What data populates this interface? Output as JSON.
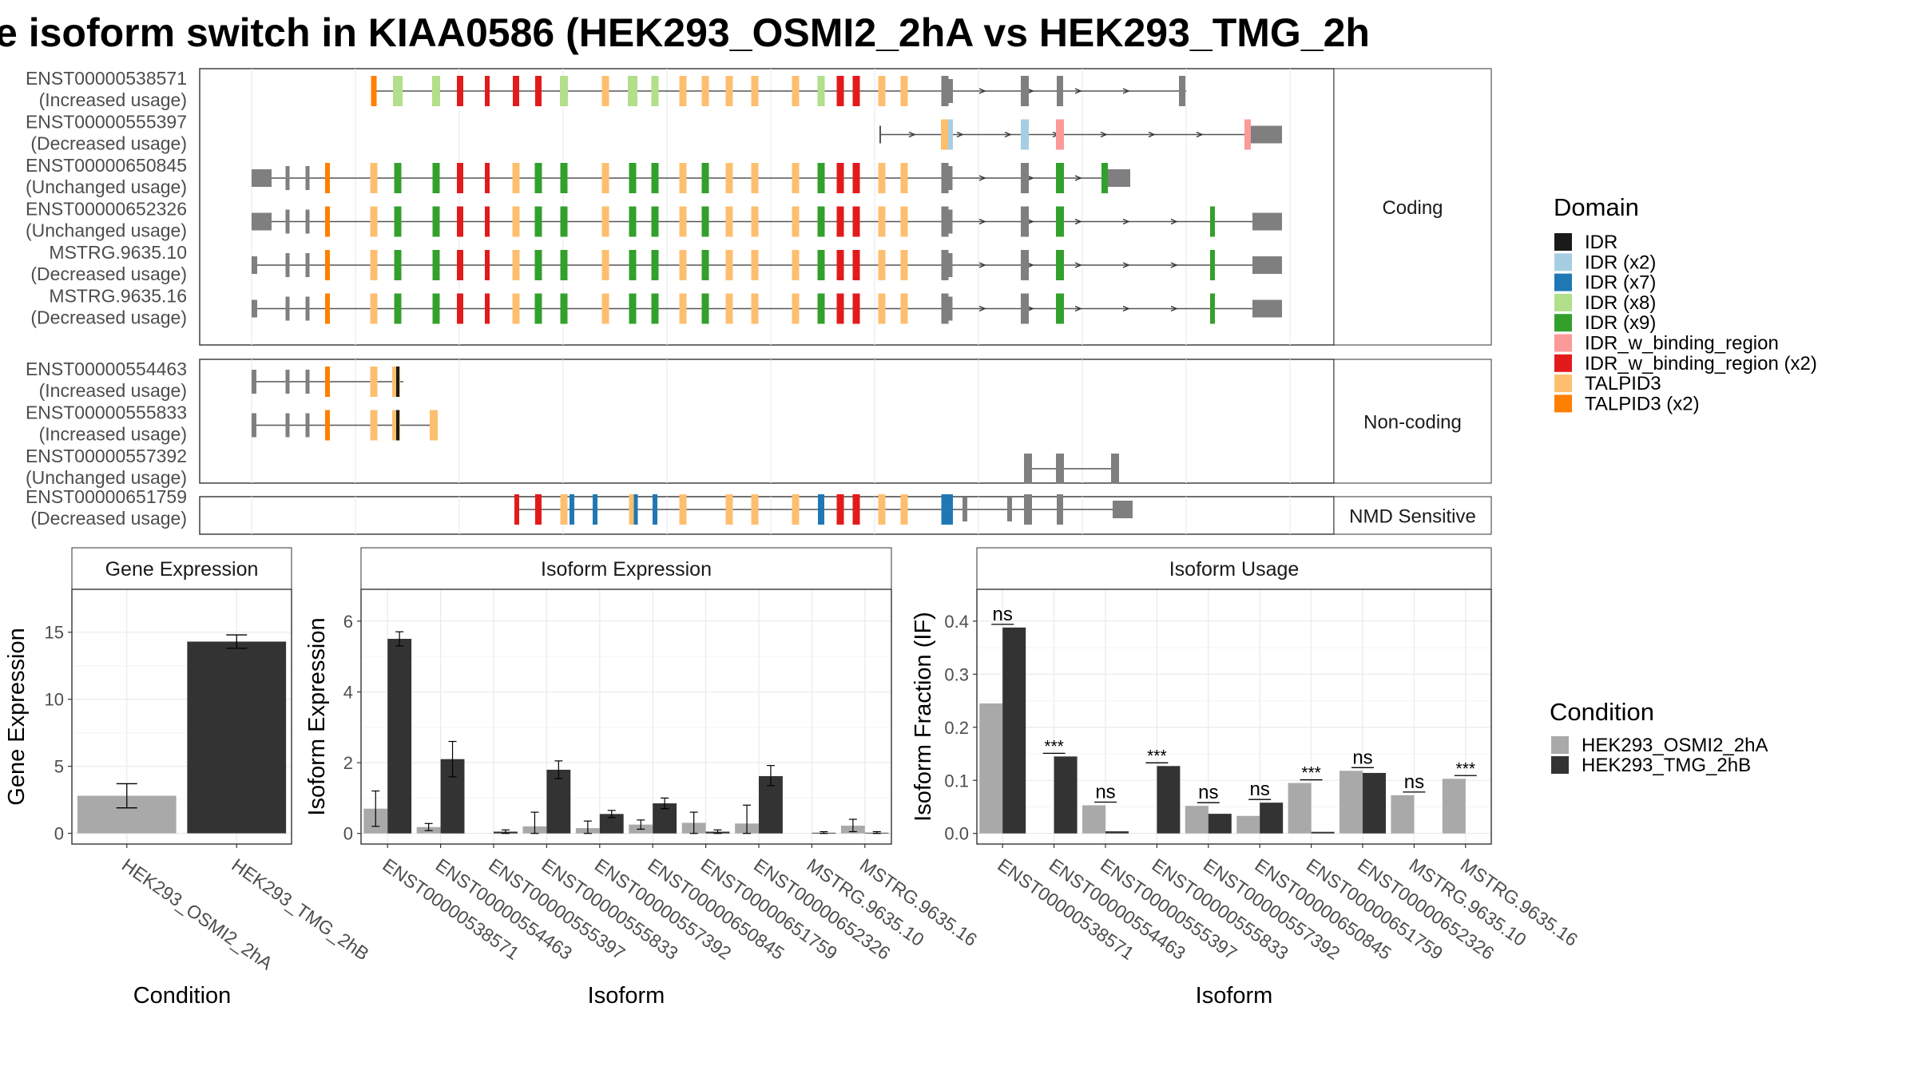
{
  "title": "e isoform switch in KIAA0586 (HEK293_OSMI2_2hA vs HEK293_TMG_2h",
  "colors": {
    "grey": "#7f7f7f",
    "cond_a": "#a9a9a9",
    "cond_b": "#333333",
    "IDR": "#1a1a1a",
    "IDR (x2)": "#a6cee3",
    "IDR (x7)": "#1f78b4",
    "IDR (x8)": "#b2df8a",
    "IDR (x9)": "#33a02c",
    "IDR_w_binding_region": "#fb9a99",
    "IDR_w_binding_region (x2)": "#e31a1c",
    "TALPID3": "#fdbf6f",
    "TALPID3 (x2)": "#ff7f00"
  },
  "structure": {
    "panels": [
      {
        "label": "Coding",
        "transcripts": [
          {
            "name": "ENST00000538571",
            "usage": "(Increased usage)"
          },
          {
            "name": "ENST00000555397",
            "usage": "(Decreased usage)"
          },
          {
            "name": "ENST00000650845",
            "usage": "(Unchanged usage)"
          },
          {
            "name": "ENST00000652326",
            "usage": "(Unchanged usage)"
          },
          {
            "name": "MSTRG.9635.10",
            "usage": "(Decreased usage)"
          },
          {
            "name": "MSTRG.9635.16",
            "usage": "(Decreased usage)"
          }
        ]
      },
      {
        "label": "Non-coding",
        "transcripts": [
          {
            "name": "ENST00000554463",
            "usage": "(Increased usage)"
          },
          {
            "name": "ENST00000555833",
            "usage": "(Increased usage)"
          },
          {
            "name": "ENST00000557392",
            "usage": "(Unchanged usage)"
          }
        ]
      },
      {
        "label": "NMD Sensitive",
        "transcripts": [
          {
            "name": "ENST00000651759",
            "usage": "(Decreased usage)"
          }
        ]
      }
    ]
  },
  "legend_domain": {
    "title": "Domain",
    "items": [
      "IDR",
      "IDR (x2)",
      "IDR (x7)",
      "IDR (x8)",
      "IDR (x9)",
      "IDR_w_binding_region",
      "IDR_w_binding_region (x2)",
      "TALPID3",
      "TALPID3 (x2)"
    ]
  },
  "legend_condition": {
    "title": "Condition",
    "items": [
      "HEK293_OSMI2_2hA",
      "HEK293_TMG_2hB"
    ]
  },
  "chart_data": [
    {
      "type": "bar",
      "title": "Gene Expression",
      "xlabel": "Condition",
      "ylabel": "Gene Expression",
      "categories": [
        "HEK293_OSMI2_2hA",
        "HEK293_TMG_2hB"
      ],
      "values": [
        2.8,
        14.3
      ],
      "error_low": [
        1.9,
        13.8
      ],
      "error_high": [
        3.7,
        14.8
      ],
      "ylim": [
        -0.8,
        18.2
      ],
      "yticks": [
        0,
        5,
        10,
        15
      ]
    },
    {
      "type": "bar",
      "title": "Isoform Expression",
      "xlabel": "Isoform",
      "ylabel": "Isoform Expression",
      "categories": [
        "ENST00000538571",
        "ENST00000554463",
        "ENST00000555397",
        "ENST00000555833",
        "ENST00000557392",
        "ENST00000650845",
        "ENST00000651759",
        "ENST00000652326",
        "MSTRG.9635.10",
        "MSTRG.9635.16"
      ],
      "series": [
        {
          "name": "HEK293_OSMI2_2hA",
          "values": [
            0.7,
            0.18,
            0.0,
            0.2,
            0.15,
            0.25,
            0.3,
            0.28,
            0.0,
            0.22
          ],
          "error_low": [
            0.2,
            0.08,
            0.0,
            0.0,
            0.0,
            0.12,
            0.0,
            0.0,
            0.0,
            0.05
          ],
          "error_high": [
            1.2,
            0.28,
            0.0,
            0.6,
            0.35,
            0.38,
            0.6,
            0.8,
            0.0,
            0.4
          ]
        },
        {
          "name": "HEK293_TMG_2hB",
          "values": [
            5.5,
            2.1,
            0.05,
            1.8,
            0.55,
            0.85,
            0.05,
            1.62,
            0.02,
            0.02
          ],
          "error_low": [
            5.3,
            1.6,
            0.0,
            1.55,
            0.45,
            0.7,
            0.0,
            1.35,
            0.0,
            0.0
          ],
          "error_high": [
            5.7,
            2.6,
            0.1,
            2.05,
            0.65,
            1.0,
            0.1,
            1.92,
            0.05,
            0.05
          ]
        }
      ],
      "ylim": [
        -0.3,
        6.9
      ],
      "yticks": [
        0,
        2,
        4,
        6
      ]
    },
    {
      "type": "bar",
      "title": "Isoform Usage",
      "xlabel": "Isoform",
      "ylabel": "Isoform Fraction (IF)",
      "categories": [
        "ENST00000538571",
        "ENST00000554463",
        "ENST00000555397",
        "ENST00000555833",
        "ENST00000557392",
        "ENST00000650845",
        "ENST00000651759",
        "ENST00000652326",
        "MSTRG.9635.10",
        "MSTRG.9635.16"
      ],
      "series": [
        {
          "name": "HEK293_OSMI2_2hA",
          "values": [
            0.245,
            0.0,
            0.053,
            0.0,
            0.052,
            0.033,
            0.095,
            0.118,
            0.072,
            0.103
          ]
        },
        {
          "name": "HEK293_TMG_2hB",
          "values": [
            0.388,
            0.145,
            0.004,
            0.127,
            0.037,
            0.058,
            0.003,
            0.114,
            0.0,
            0.0
          ]
        }
      ],
      "significance": [
        "ns",
        "***",
        "ns",
        "***",
        "ns",
        "ns",
        "***",
        "ns",
        "ns",
        "***"
      ],
      "ylim": [
        -0.02,
        0.46
      ],
      "yticks": [
        0.0,
        0.1,
        0.2,
        0.3,
        0.4
      ],
      "ytick_labels": [
        "0.0",
        "0.1",
        "0.2",
        "0.3",
        "0.4"
      ]
    }
  ]
}
